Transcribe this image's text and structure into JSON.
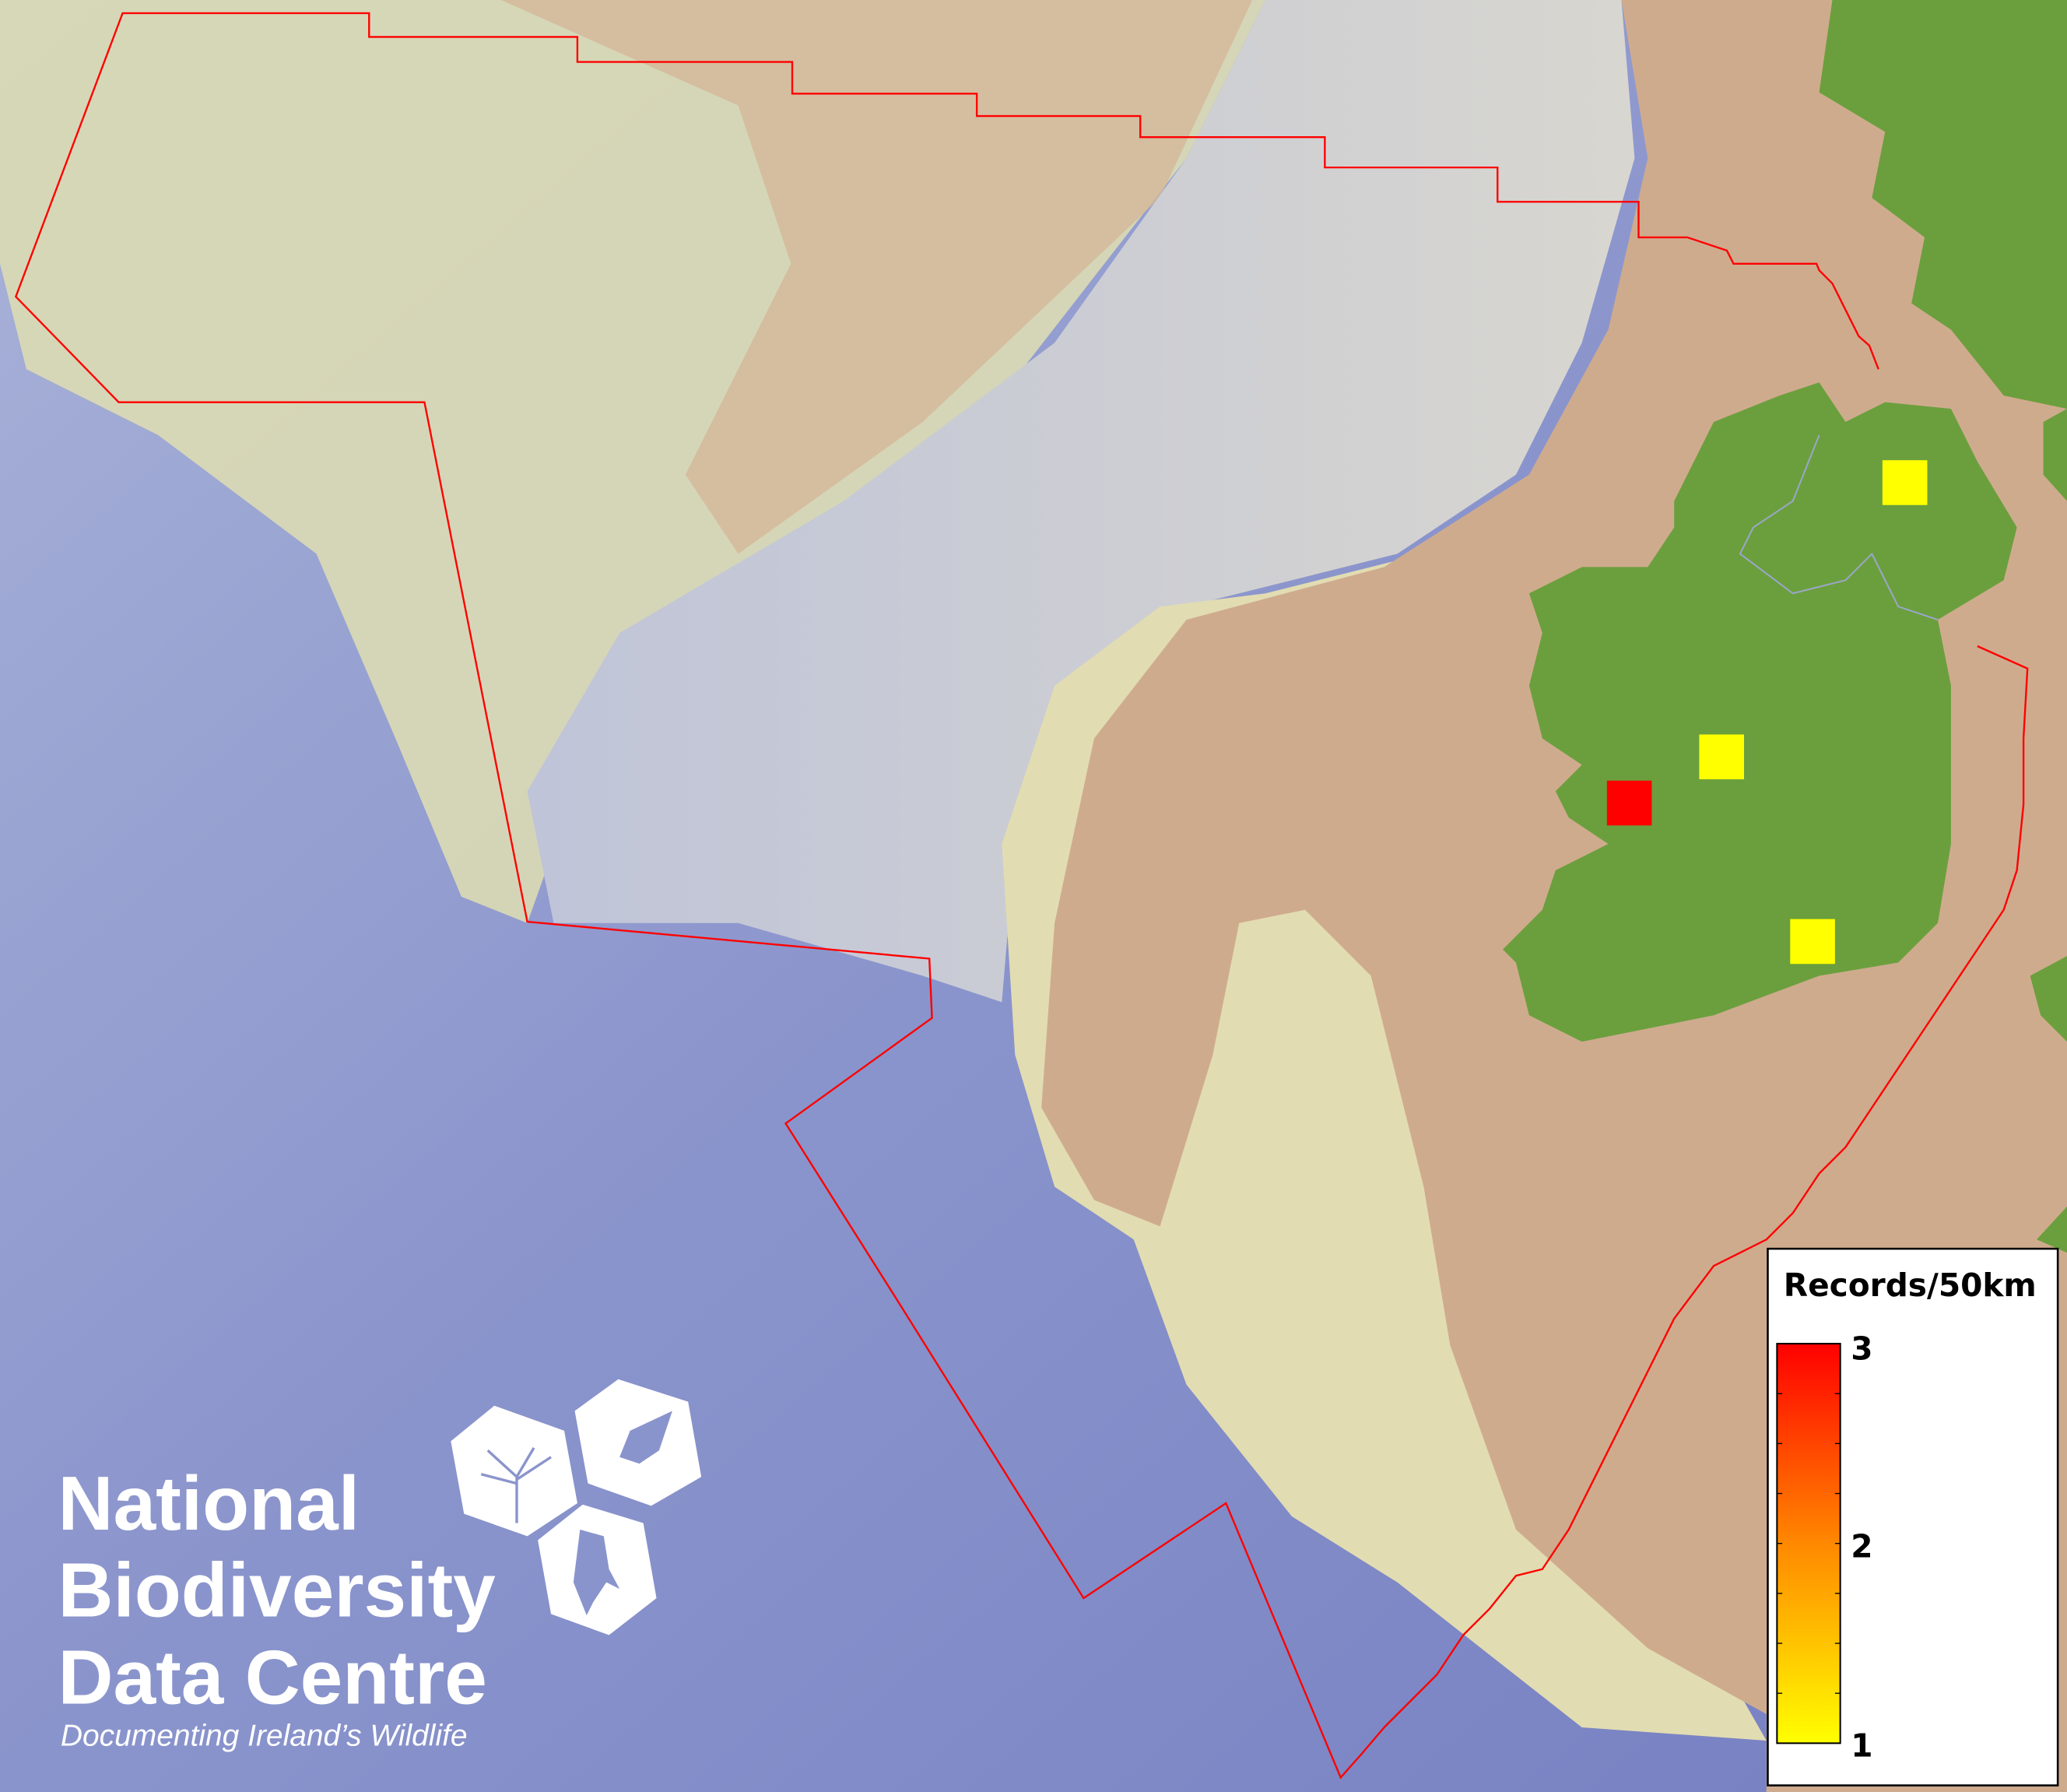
{
  "map": {
    "colors": {
      "deep_ocean": "#7d88c6",
      "slope": "#c9cdd6",
      "shelf_light": "#e4dfb8",
      "shelf_tan": "#cfae90",
      "land": "#6b9f3d",
      "boundary": "#ff0000"
    },
    "occurrence_cells": [
      {
        "value": 1,
        "color": "#ffff00"
      },
      {
        "value": 1,
        "color": "#ffff00"
      },
      {
        "value": 3,
        "color": "#ff0000"
      },
      {
        "value": 1,
        "color": "#ffff00"
      }
    ]
  },
  "legend": {
    "title": "Records/50km",
    "max_label": "3",
    "mid_label": "2",
    "min_label": "1",
    "color_low": "#ffff00",
    "color_mid": "#ff8800",
    "color_high": "#ff0000"
  },
  "logo": {
    "line1": "National",
    "line2": "Biodiversity",
    "line3": "Data Centre",
    "tagline": "Documenting Ireland’s Wildlife"
  }
}
